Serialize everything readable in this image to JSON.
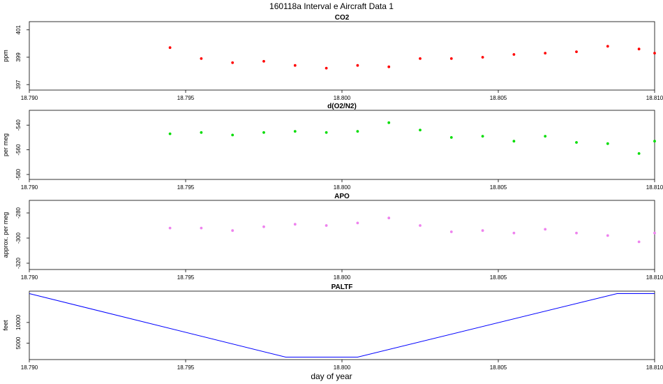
{
  "figure": {
    "title": "160118a   Interval e Aircraft Data 1",
    "xlabel": "day of year"
  },
  "chart_data": [
    {
      "type": "scatter",
      "title": "CO2",
      "ylabel": "ppm",
      "color": "#ff0000",
      "xlim": [
        18.79,
        18.81
      ],
      "ylim": [
        396.6,
        401.6
      ],
      "xticks": [
        18.79,
        18.795,
        18.8,
        18.805,
        18.81
      ],
      "xtick_labels": [
        "18.790",
        "18.795",
        "18.800",
        "18.805",
        "18.810"
      ],
      "yticks": [
        397,
        399,
        401
      ],
      "ytick_labels": [
        "397",
        "399",
        "401"
      ],
      "x": [
        18.7945,
        18.7955,
        18.7965,
        18.7975,
        18.7985,
        18.7995,
        18.8005,
        18.8015,
        18.8025,
        18.8035,
        18.8045,
        18.8055,
        18.8065,
        18.8075,
        18.8085,
        18.8095,
        18.81
      ],
      "y": [
        399.7,
        398.9,
        398.6,
        398.7,
        398.4,
        398.2,
        398.4,
        398.3,
        398.9,
        398.9,
        399.0,
        399.2,
        399.3,
        399.4,
        399.8,
        399.6,
        399.3
      ]
    },
    {
      "type": "scatter",
      "title": "d(O2/N2)",
      "ylabel": "per meg",
      "color": "#00dd00",
      "xlim": [
        18.79,
        18.81
      ],
      "ylim": [
        -584,
        -528
      ],
      "xticks": [
        18.79,
        18.795,
        18.8,
        18.805,
        18.81
      ],
      "xtick_labels": [
        "18.790",
        "18.795",
        "18.800",
        "18.805",
        "18.810"
      ],
      "yticks": [
        -540,
        -560,
        -580
      ],
      "ytick_labels": [
        "-540",
        "-560",
        "-580"
      ],
      "x": [
        18.7945,
        18.7955,
        18.7965,
        18.7975,
        18.7985,
        18.7995,
        18.8005,
        18.8015,
        18.8025,
        18.8035,
        18.8045,
        18.8055,
        18.8065,
        18.8075,
        18.8085,
        18.8095,
        18.81
      ],
      "y": [
        -547,
        -546,
        -548,
        -546,
        -545,
        -546,
        -545,
        -538,
        -544,
        -550,
        -549,
        -553,
        -549,
        -554,
        -555,
        -563,
        -553
      ]
    },
    {
      "type": "scatter",
      "title": "APO",
      "ylabel": "approx. per meg",
      "color": "#ee82ee",
      "xlim": [
        18.79,
        18.81
      ],
      "ylim": [
        -325,
        -270
      ],
      "xticks": [
        18.79,
        18.795,
        18.8,
        18.805,
        18.81
      ],
      "xtick_labels": [
        "18.790",
        "18.795",
        "18.800",
        "18.805",
        "18.810"
      ],
      "yticks": [
        -280,
        -300,
        -320
      ],
      "ytick_labels": [
        "-280",
        "-300",
        "-320"
      ],
      "x": [
        18.7945,
        18.7955,
        18.7965,
        18.7975,
        18.7985,
        18.7995,
        18.8005,
        18.8015,
        18.8025,
        18.8035,
        18.8045,
        18.8055,
        18.8065,
        18.8075,
        18.8085,
        18.8095,
        18.81
      ],
      "y": [
        -292,
        -292,
        -294,
        -291,
        -289,
        -290,
        -288,
        -284,
        -290,
        -295,
        -294,
        -296,
        -293,
        -296,
        -298,
        -303,
        -296
      ]
    },
    {
      "type": "line",
      "title": "PALTF",
      "ylabel": "feet",
      "color": "#0000ff",
      "xlim": [
        18.79,
        18.81
      ],
      "ylim": [
        1000,
        17600
      ],
      "xticks": [
        18.79,
        18.795,
        18.8,
        18.805,
        18.81
      ],
      "xtick_labels": [
        "18.790",
        "18.795",
        "18.800",
        "18.805",
        "18.810"
      ],
      "yticks": [
        5000,
        10000
      ],
      "ytick_labels": [
        "5000",
        "10000"
      ],
      "x": [
        18.79,
        18.7982,
        18.8005,
        18.8088,
        18.81
      ],
      "y": [
        17000,
        1600,
        1600,
        17000,
        17000
      ]
    }
  ]
}
